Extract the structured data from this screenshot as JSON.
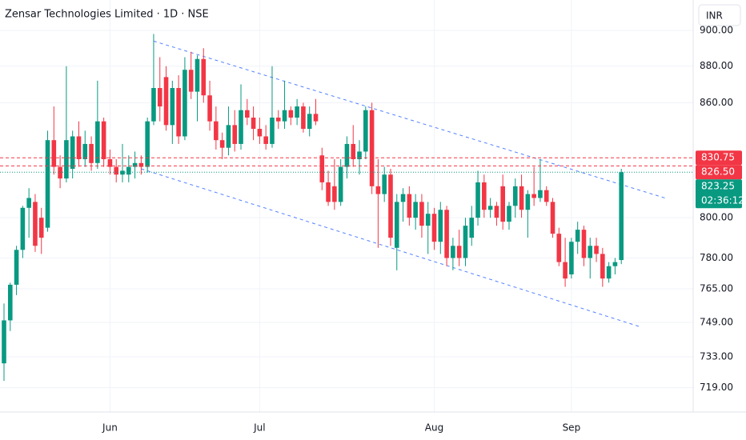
{
  "chart_data": {
    "type": "candlestick",
    "title": "Zensar Technologies Limited · 1D · NSE",
    "currency": "INR",
    "categories": [
      null,
      null,
      null,
      null,
      null,
      null,
      null,
      null,
      null,
      null,
      null,
      null,
      null,
      null,
      null,
      null,
      null,
      "Jun",
      null,
      null,
      null,
      null,
      null,
      null,
      null,
      null,
      null,
      null,
      null,
      null,
      null,
      null,
      null,
      null,
      null,
      null,
      null,
      null,
      null,
      null,
      null,
      "Jul",
      null,
      null,
      null,
      null,
      null,
      null,
      null,
      null,
      null,
      null,
      null,
      null,
      null,
      null,
      null,
      null,
      null,
      null,
      null,
      null,
      null,
      null,
      null,
      null,
      null,
      null,
      null,
      "Aug",
      null,
      null,
      null,
      null,
      null,
      null,
      null,
      null,
      null,
      null,
      null,
      null,
      null,
      null,
      null,
      null,
      null,
      null,
      null,
      null,
      null,
      "Sep",
      null,
      null,
      null,
      null,
      null,
      null,
      null,
      null
    ],
    "open": [
      730,
      750,
      767,
      784,
      805,
      808,
      800,
      795,
      840,
      826,
      820,
      825,
      842,
      830,
      838,
      828,
      850,
      830,
      826,
      822,
      822,
      826,
      828,
      826,
      850,
      868,
      874,
      848,
      868,
      842,
      878,
      866,
      884,
      864,
      850,
      840,
      836,
      848,
      838,
      856,
      852,
      846,
      842,
      838,
      852,
      850,
      856,
      852,
      858,
      846,
      854,
      832,
      818,
      816,
      808,
      826,
      838,
      830,
      834,
      856,
      816,
      812,
      822,
      785,
      808,
      812,
      800,
      808,
      796,
      802,
      788,
      804,
      780,
      786,
      780,
      790,
      800,
      818,
      804,
      806,
      816,
      798,
      806,
      816,
      804,
      812,
      810,
      814,
      808,
      792,
      778,
      772,
      788,
      794,
      780,
      786,
      782,
      770,
      776,
      779
    ],
    "high": [
      758,
      768,
      786,
      806,
      815,
      812,
      805,
      845,
      858,
      832,
      880,
      845,
      850,
      845,
      842,
      872,
      852,
      835,
      830,
      838,
      832,
      834,
      832,
      852,
      898,
      885,
      880,
      872,
      875,
      885,
      888,
      886,
      890,
      872,
      858,
      844,
      858,
      856,
      870,
      862,
      858,
      852,
      848,
      880,
      856,
      872,
      858,
      862,
      860,
      858,
      862,
      836,
      824,
      830,
      830,
      842,
      848,
      840,
      858,
      860,
      830,
      826,
      825,
      812,
      815,
      816,
      812,
      812,
      808,
      805,
      808,
      806,
      790,
      794,
      800,
      806,
      824,
      822,
      810,
      808,
      822,
      808,
      820,
      822,
      814,
      826,
      830,
      816,
      810,
      795,
      790,
      790,
      798,
      796,
      790,
      790,
      785,
      778,
      780,
      825
    ],
    "low": [
      722,
      745,
      762,
      780,
      790,
      783,
      782,
      793,
      822,
      815,
      818,
      820,
      826,
      826,
      824,
      825,
      826,
      822,
      818,
      818,
      818,
      820,
      822,
      823,
      848,
      850,
      845,
      838,
      838,
      840,
      862,
      850,
      860,
      845,
      835,
      830,
      832,
      834,
      835,
      848,
      840,
      838,
      835,
      836,
      846,
      846,
      848,
      848,
      844,
      842,
      848,
      814,
      806,
      804,
      806,
      820,
      826,
      822,
      830,
      812,
      785,
      808,
      786,
      774,
      798,
      796,
      794,
      790,
      782,
      784,
      782,
      776,
      774,
      776,
      776,
      786,
      796,
      800,
      800,
      796,
      794,
      794,
      800,
      800,
      790,
      806,
      808,
      806,
      790,
      776,
      766,
      770,
      782,
      776,
      770,
      778,
      766,
      768,
      772,
      777
    ],
    "close": [
      750,
      767,
      784,
      805,
      810,
      786,
      790,
      840,
      826,
      820,
      840,
      842,
      830,
      838,
      828,
      850,
      830,
      826,
      822,
      824,
      826,
      828,
      826,
      850,
      868,
      858,
      848,
      868,
      842,
      878,
      866,
      884,
      864,
      850,
      840,
      836,
      848,
      838,
      856,
      852,
      846,
      842,
      838,
      852,
      850,
      856,
      852,
      858,
      846,
      854,
      850,
      818,
      808,
      808,
      826,
      838,
      830,
      834,
      856,
      816,
      812,
      822,
      790,
      808,
      812,
      800,
      808,
      796,
      802,
      788,
      804,
      780,
      786,
      780,
      796,
      800,
      818,
      804,
      806,
      800,
      798,
      806,
      816,
      804,
      812,
      810,
      814,
      808,
      792,
      778,
      770,
      788,
      794,
      780,
      786,
      782,
      770,
      776,
      778,
      823.25
    ],
    "up_color": "#089981",
    "down_color": "#f23645",
    "trendlines": [
      {
        "x": [
          24,
          106
        ],
        "values": [
          894,
          810
        ]
      },
      {
        "x": [
          22,
          102
        ],
        "values": [
          825,
          747
        ]
      }
    ],
    "price_lines": [
      {
        "value": 830.75,
        "label": "830.75",
        "color": "#f23645"
      },
      {
        "value": 826.5,
        "label": "826.50",
        "color": "#f23645"
      },
      {
        "value": 823.25,
        "label": "823.25",
        "color": "#089981",
        "countdown": "02:36:12"
      }
    ],
    "log_scale": true,
    "grid": true,
    "ylim": [
      708,
      917.4
    ],
    "yticks": [
      {
        "value": 900,
        "label": "900.00"
      },
      {
        "value": 880,
        "label": "880.00"
      },
      {
        "value": 860,
        "label": "860.00"
      },
      {
        "value": 800,
        "label": "800.00"
      },
      {
        "value": 780,
        "label": "780.00"
      },
      {
        "value": 765,
        "label": "765.00"
      },
      {
        "value": 749,
        "label": "749.00"
      },
      {
        "value": 733,
        "label": "733.00"
      },
      {
        "value": 719,
        "label": "719.00"
      }
    ]
  }
}
